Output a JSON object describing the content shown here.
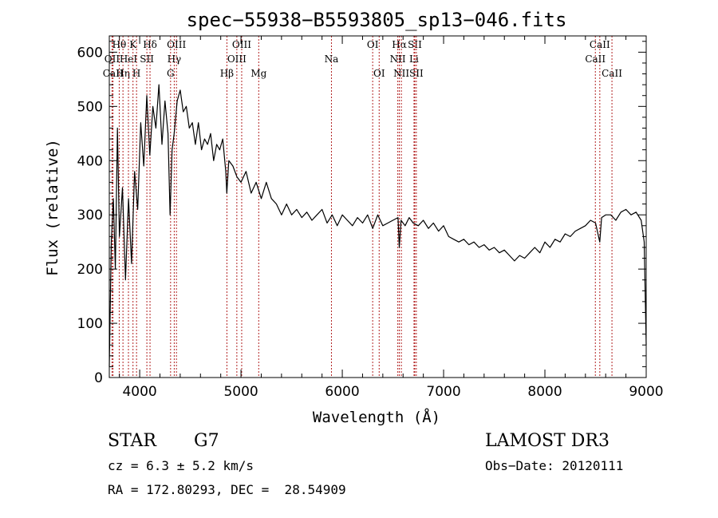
{
  "chart_data": {
    "type": "line",
    "title": "spec−55938−B5593805_sp13−046.fits",
    "xlabel": "Wavelength (Å)",
    "ylabel": "Flux (relative)",
    "xlim": [
      3700,
      9000
    ],
    "ylim": [
      0,
      630
    ],
    "xticks": [
      4000,
      5000,
      6000,
      7000,
      8000,
      9000
    ],
    "yticks": [
      0,
      100,
      200,
      300,
      400,
      500,
      600
    ],
    "series": [
      {
        "name": "spectrum",
        "x": [
          3700,
          3720,
          3740,
          3760,
          3780,
          3800,
          3830,
          3860,
          3890,
          3920,
          3950,
          3980,
          4010,
          4040,
          4070,
          4100,
          4130,
          4160,
          4190,
          4220,
          4250,
          4280,
          4300,
          4320,
          4340,
          4370,
          4400,
          4430,
          4460,
          4490,
          4520,
          4550,
          4580,
          4610,
          4640,
          4670,
          4700,
          4730,
          4760,
          4790,
          4820,
          4850,
          4860,
          4880,
          4920,
          4960,
          5000,
          5050,
          5100,
          5150,
          5200,
          5250,
          5300,
          5350,
          5400,
          5450,
          5500,
          5550,
          5600,
          5650,
          5700,
          5750,
          5800,
          5850,
          5900,
          5950,
          6000,
          6050,
          6100,
          6150,
          6200,
          6250,
          6300,
          6350,
          6400,
          6450,
          6500,
          6550,
          6563,
          6580,
          6620,
          6660,
          6700,
          6750,
          6800,
          6850,
          6900,
          6950,
          7000,
          7050,
          7100,
          7150,
          7200,
          7250,
          7300,
          7350,
          7400,
          7450,
          7500,
          7550,
          7600,
          7650,
          7700,
          7750,
          7800,
          7850,
          7900,
          7950,
          8000,
          8050,
          8100,
          8150,
          8200,
          8250,
          8300,
          8350,
          8400,
          8450,
          8500,
          8542,
          8560,
          8600,
          8650,
          8700,
          8750,
          8800,
          8850,
          8900,
          8950,
          8980,
          9000
        ],
        "y": [
          20,
          250,
          330,
          200,
          460,
          260,
          350,
          180,
          330,
          210,
          380,
          310,
          470,
          390,
          520,
          410,
          500,
          460,
          540,
          430,
          510,
          450,
          300,
          420,
          450,
          510,
          530,
          490,
          500,
          460,
          470,
          430,
          470,
          420,
          440,
          430,
          450,
          400,
          430,
          420,
          440,
          380,
          340,
          400,
          390,
          370,
          360,
          380,
          340,
          360,
          330,
          360,
          330,
          320,
          300,
          320,
          300,
          310,
          295,
          305,
          290,
          300,
          310,
          285,
          300,
          280,
          300,
          290,
          280,
          295,
          285,
          300,
          275,
          300,
          280,
          285,
          290,
          295,
          240,
          290,
          280,
          295,
          285,
          280,
          290,
          275,
          285,
          270,
          280,
          260,
          255,
          250,
          255,
          245,
          250,
          240,
          245,
          235,
          240,
          230,
          235,
          225,
          215,
          225,
          220,
          230,
          240,
          230,
          250,
          240,
          255,
          250,
          265,
          260,
          270,
          275,
          280,
          290,
          285,
          250,
          295,
          300,
          300,
          290,
          305,
          310,
          300,
          305,
          290,
          250,
          60
        ]
      }
    ],
    "spectral_lines": [
      {
        "label": "Hθ",
        "wl": 3798,
        "row": 1
      },
      {
        "label": "OII",
        "wl": 3727,
        "row": 2
      },
      {
        "label": "CaII",
        "wl": 3737,
        "row": 3
      },
      {
        "label": "Hη",
        "wl": 3835,
        "row": 3
      },
      {
        "label": "HeI",
        "wl": 3889,
        "row": 2
      },
      {
        "label": "K",
        "wl": 3934,
        "row": 1
      },
      {
        "label": "H",
        "wl": 3969,
        "row": 3
      },
      {
        "label": "SII",
        "wl": 4071,
        "row": 2
      },
      {
        "label": "Hδ",
        "wl": 4102,
        "row": 1
      },
      {
        "label": "OIII",
        "wl": 4363,
        "row": 1
      },
      {
        "label": "Hγ",
        "wl": 4341,
        "row": 2
      },
      {
        "label": "G",
        "wl": 4305,
        "row": 3
      },
      {
        "label": "Hβ",
        "wl": 4861,
        "row": 3
      },
      {
        "label": "OIII",
        "wl": 5007,
        "row": 1
      },
      {
        "label": "OIII",
        "wl": 4959,
        "row": 2
      },
      {
        "label": "Mg",
        "wl": 5175,
        "row": 3
      },
      {
        "label": "Na",
        "wl": 5893,
        "row": 2
      },
      {
        "label": "OI",
        "wl": 6300,
        "row": 1
      },
      {
        "label": "OI",
        "wl": 6364,
        "row": 3
      },
      {
        "label": "Hα",
        "wl": 6563,
        "row": 1
      },
      {
        "label": "NII",
        "wl": 6548,
        "row": 2
      },
      {
        "label": "NII",
        "wl": 6583,
        "row": 3
      },
      {
        "label": "SII",
        "wl": 6716,
        "row": 1
      },
      {
        "label": "Li",
        "wl": 6708,
        "row": 2
      },
      {
        "label": "SII",
        "wl": 6731,
        "row": 3
      },
      {
        "label": "CaII",
        "wl": 8542,
        "row": 1
      },
      {
        "label": "CaII",
        "wl": 8498,
        "row": 2
      },
      {
        "label": "CaII",
        "wl": 8662,
        "row": 3
      }
    ]
  },
  "info": {
    "class": "STAR",
    "subclass": "G7",
    "survey": "LAMOST DR3",
    "cz": "cz = 6.3 ± 5.2 km/s",
    "obs_date": "Obs−Date: 20120111",
    "coords": "RA = 172.80293, DEC =  28.54909"
  },
  "colors": {
    "axis": "#000000",
    "spectrum": "#000000",
    "line_marker": "#b22222"
  }
}
